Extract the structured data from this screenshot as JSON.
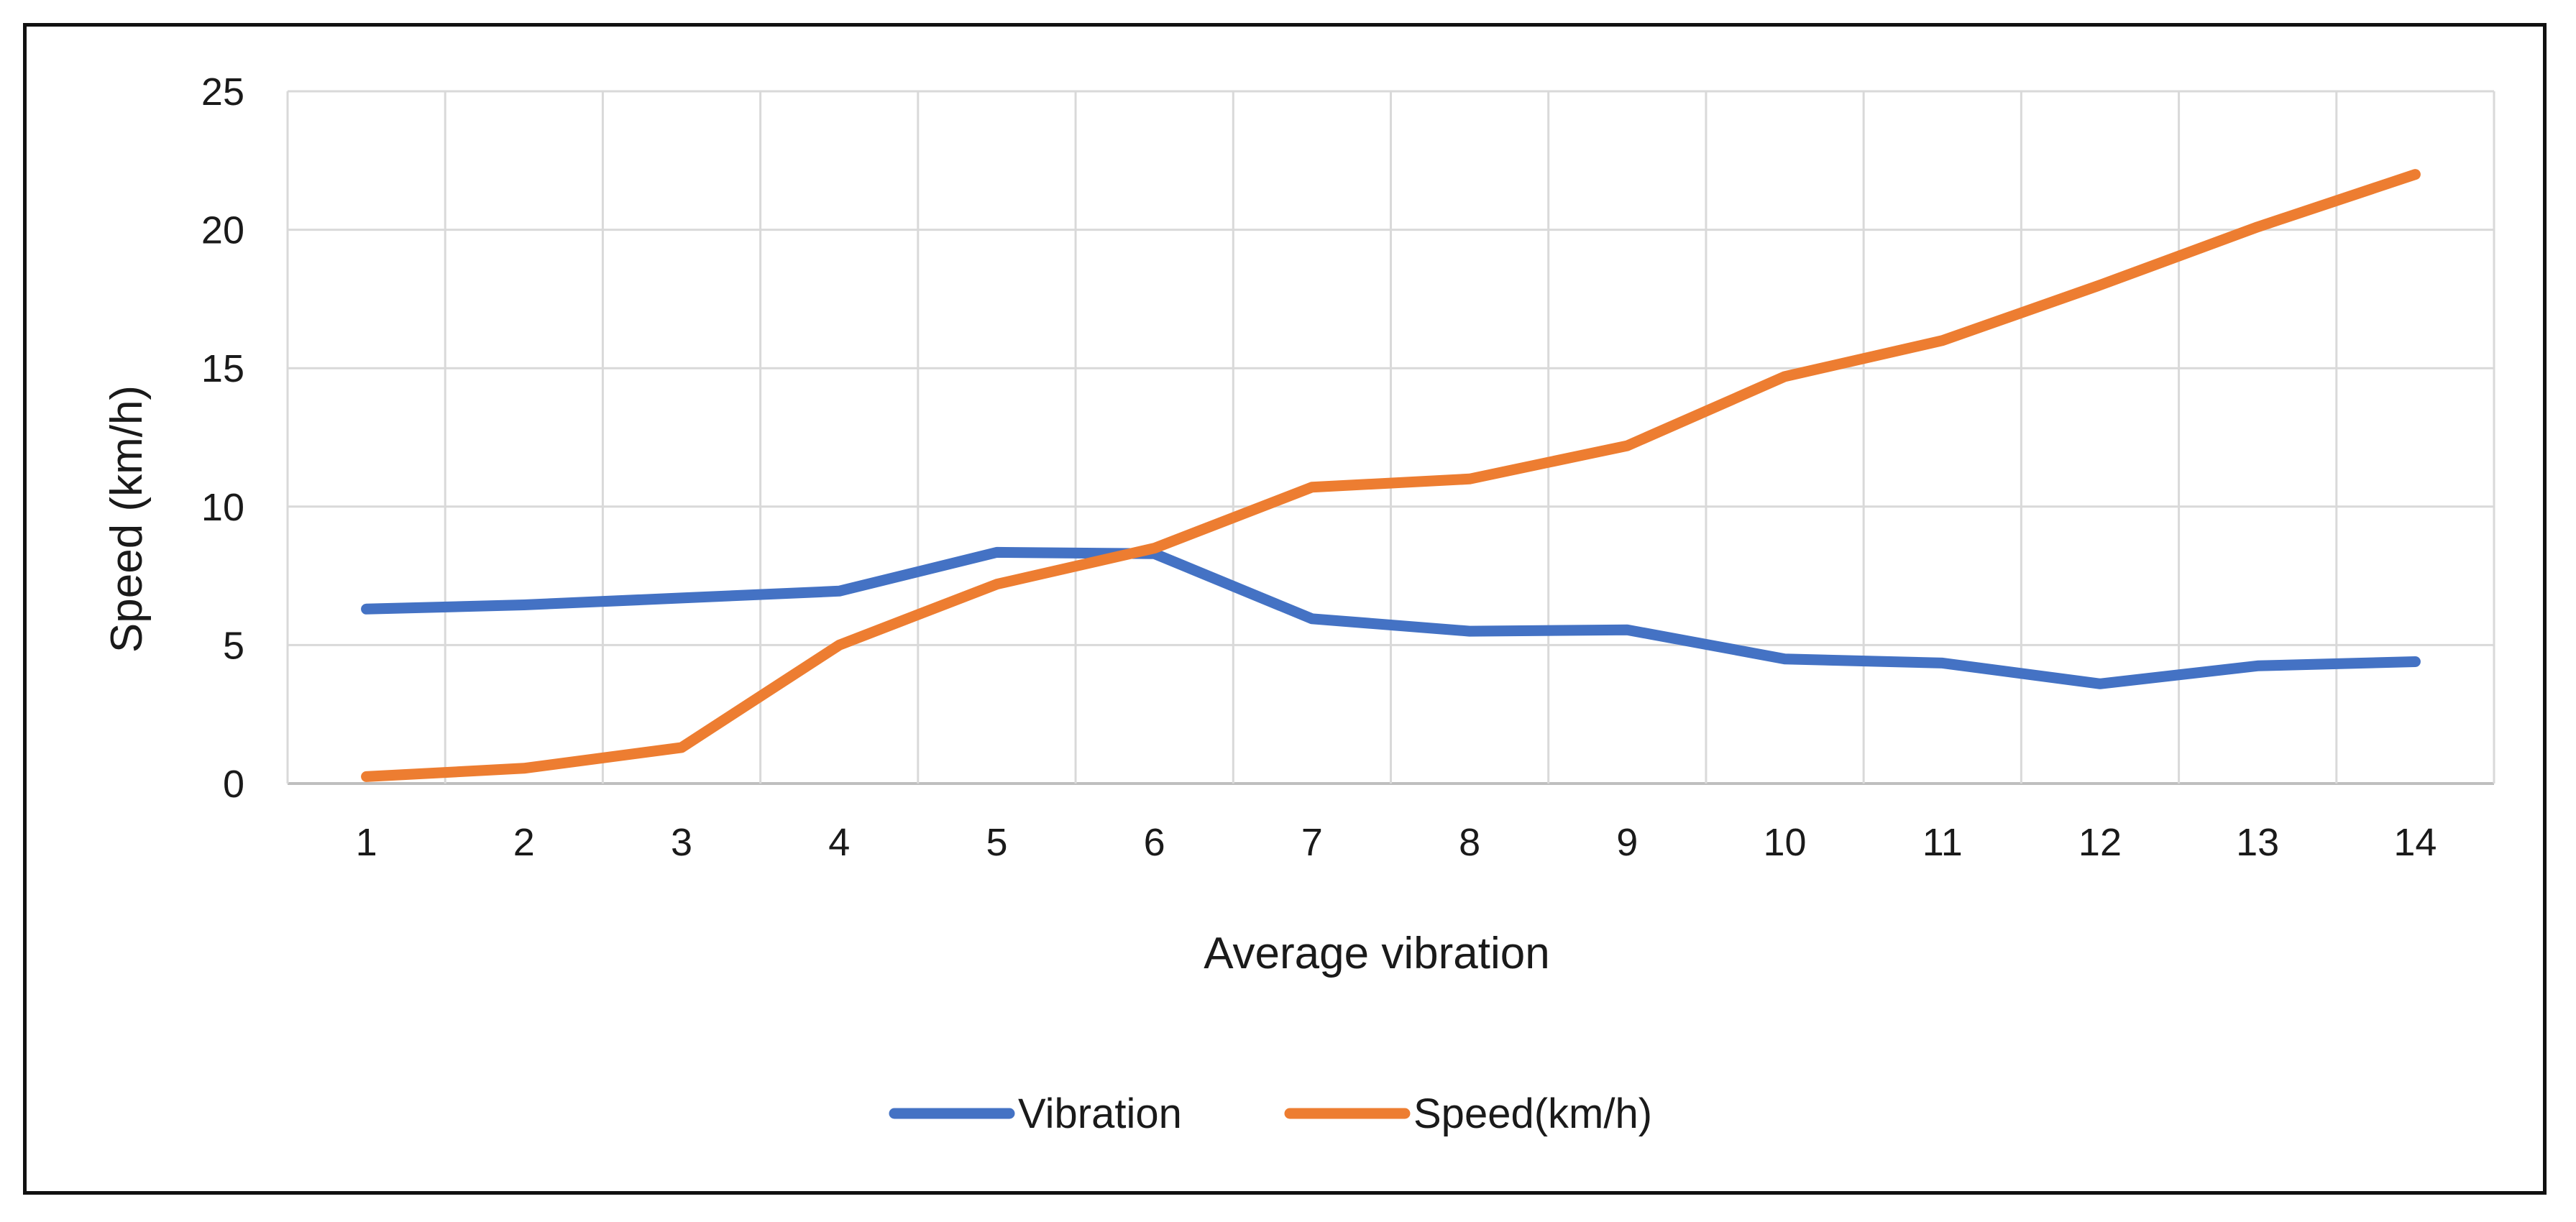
{
  "chart_data": {
    "type": "line",
    "title": "",
    "xlabel": "Average vibration",
    "ylabel": "Speed (km/h)",
    "x": [
      1,
      2,
      3,
      4,
      5,
      6,
      7,
      8,
      9,
      10,
      11,
      12,
      13,
      14
    ],
    "ylim": [
      0,
      25
    ],
    "yticks": [
      0,
      5,
      10,
      15,
      20,
      25
    ],
    "grid": true,
    "legend_position": "bottom",
    "series": [
      {
        "name": "Vibration",
        "color": "#4472C4",
        "values": [
          6.3,
          6.45,
          6.7,
          6.95,
          8.35,
          8.3,
          5.95,
          5.5,
          5.55,
          4.5,
          4.35,
          3.6,
          4.25,
          4.4
        ]
      },
      {
        "name": "Speed(km/h)",
        "color": "#ED7D31",
        "values": [
          0.25,
          0.55,
          1.3,
          5.0,
          7.2,
          8.5,
          10.7,
          11.0,
          12.2,
          14.7,
          16.0,
          18.0,
          20.1,
          22.0
        ]
      }
    ]
  }
}
